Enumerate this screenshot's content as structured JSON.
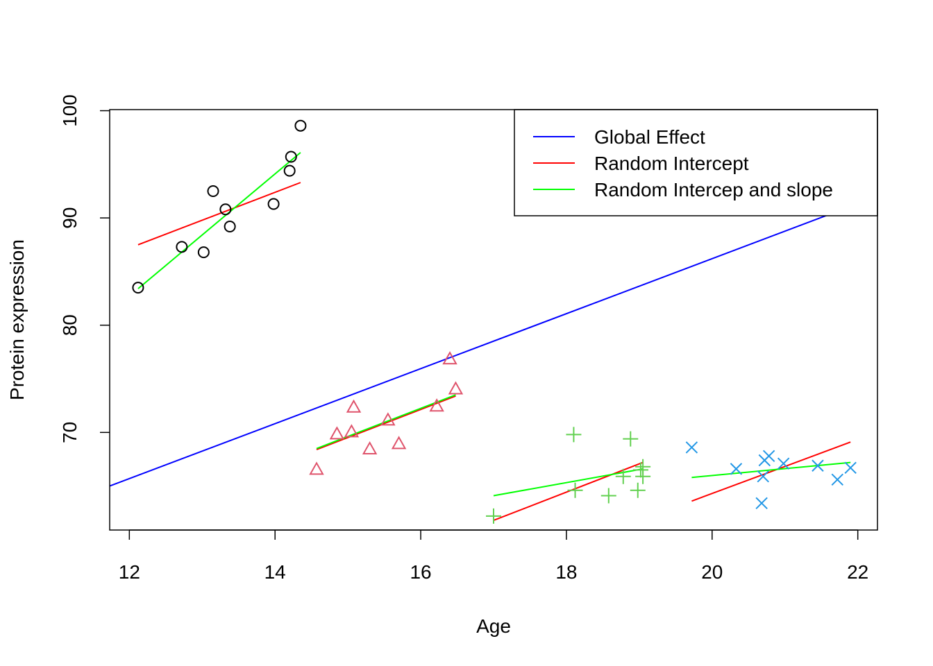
{
  "chart_data": {
    "type": "scatter",
    "title": "",
    "xlabel": "Age",
    "ylabel": "Protein expression",
    "xlim": [
      11.73,
      22.27
    ],
    "ylim": [
      60.9,
      100.1
    ],
    "x_ticks": [
      12,
      14,
      16,
      18,
      20,
      22
    ],
    "y_ticks": [
      70,
      80,
      90,
      100
    ],
    "grid": false,
    "legend_position": "top-right",
    "groups": [
      {
        "marker": "circle",
        "color": "#000000",
        "points": [
          {
            "x": 12.12,
            "y": 83.5
          },
          {
            "x": 12.72,
            "y": 87.3
          },
          {
            "x": 13.02,
            "y": 86.8
          },
          {
            "x": 13.15,
            "y": 92.5
          },
          {
            "x": 13.32,
            "y": 90.8
          },
          {
            "x": 13.38,
            "y": 89.2
          },
          {
            "x": 13.98,
            "y": 91.3
          },
          {
            "x": 14.2,
            "y": 94.4
          },
          {
            "x": 14.22,
            "y": 95.7
          },
          {
            "x": 14.35,
            "y": 98.6
          }
        ]
      },
      {
        "marker": "triangle",
        "color": "#DF536B",
        "points": [
          {
            "x": 14.57,
            "y": 66.5
          },
          {
            "x": 14.85,
            "y": 69.8
          },
          {
            "x": 15.05,
            "y": 70.0
          },
          {
            "x": 15.08,
            "y": 72.3
          },
          {
            "x": 15.3,
            "y": 68.4
          },
          {
            "x": 15.55,
            "y": 71.1
          },
          {
            "x": 15.7,
            "y": 68.9
          },
          {
            "x": 16.22,
            "y": 72.4
          },
          {
            "x": 16.4,
            "y": 76.8
          },
          {
            "x": 16.48,
            "y": 74.0
          }
        ]
      },
      {
        "marker": "plus",
        "color": "#61D04F",
        "points": [
          {
            "x": 17.0,
            "y": 62.2
          },
          {
            "x": 18.1,
            "y": 69.8
          },
          {
            "x": 18.12,
            "y": 64.6
          },
          {
            "x": 18.58,
            "y": 64.1
          },
          {
            "x": 18.78,
            "y": 65.9
          },
          {
            "x": 18.88,
            "y": 69.4
          },
          {
            "x": 18.98,
            "y": 64.6
          },
          {
            "x": 19.02,
            "y": 66.5
          },
          {
            "x": 19.05,
            "y": 65.9
          },
          {
            "x": 19.05,
            "y": 66.8
          }
        ]
      },
      {
        "marker": "cross",
        "color": "#2297E6",
        "points": [
          {
            "x": 19.72,
            "y": 68.6
          },
          {
            "x": 20.33,
            "y": 66.6
          },
          {
            "x": 20.68,
            "y": 63.4
          },
          {
            "x": 20.7,
            "y": 65.9
          },
          {
            "x": 20.72,
            "y": 67.4
          },
          {
            "x": 20.78,
            "y": 67.8
          },
          {
            "x": 20.98,
            "y": 67.1
          },
          {
            "x": 21.45,
            "y": 66.9
          },
          {
            "x": 21.72,
            "y": 65.6
          },
          {
            "x": 21.9,
            "y": 66.7
          }
        ]
      }
    ],
    "series": [
      {
        "name": "Global Effect",
        "color": "#0000FF",
        "segments": [
          [
            {
              "x": 11.73,
              "y": 65.0
            },
            {
              "x": 21.95,
              "y": 91.2
            }
          ]
        ]
      },
      {
        "name": "Random Intercept",
        "color": "#FF0000",
        "segments": [
          [
            {
              "x": 12.12,
              "y": 87.5
            },
            {
              "x": 14.35,
              "y": 93.3
            }
          ],
          [
            {
              "x": 14.57,
              "y": 68.4
            },
            {
              "x": 16.48,
              "y": 73.4
            }
          ],
          [
            {
              "x": 17.0,
              "y": 61.8
            },
            {
              "x": 19.05,
              "y": 67.2
            }
          ],
          [
            {
              "x": 19.72,
              "y": 63.6
            },
            {
              "x": 21.9,
              "y": 69.1
            }
          ]
        ]
      },
      {
        "name": "Random Intercep and slope",
        "color": "#00FF00",
        "segments": [
          [
            {
              "x": 12.12,
              "y": 83.4
            },
            {
              "x": 14.35,
              "y": 96.1
            }
          ],
          [
            {
              "x": 14.57,
              "y": 68.5
            },
            {
              "x": 16.48,
              "y": 73.5
            }
          ],
          [
            {
              "x": 17.0,
              "y": 64.1
            },
            {
              "x": 19.05,
              "y": 66.6
            }
          ],
          [
            {
              "x": 19.72,
              "y": 65.8
            },
            {
              "x": 21.9,
              "y": 67.2
            }
          ]
        ]
      }
    ]
  }
}
